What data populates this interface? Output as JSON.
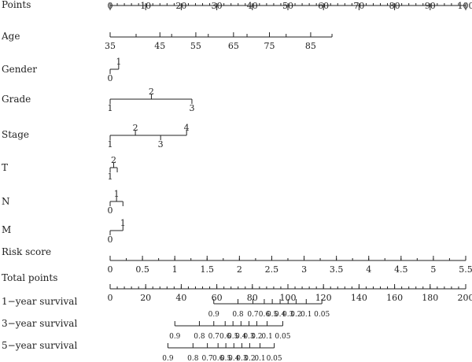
{
  "chart_data": {
    "type": "nomogram",
    "title": "",
    "rows": [
      {
        "label": "Points",
        "kind": "points",
        "ticks": [
          {
            "p": 0,
            "label": "0"
          },
          {
            "p": 10,
            "label": "10"
          },
          {
            "p": 20,
            "label": "20"
          },
          {
            "p": 30,
            "label": "30"
          },
          {
            "p": 40,
            "label": "40"
          },
          {
            "p": 50,
            "label": "50"
          },
          {
            "p": 60,
            "label": "60"
          },
          {
            "p": 70,
            "label": "70"
          },
          {
            "p": 80,
            "label": "80"
          },
          {
            "p": 90,
            "label": "90"
          },
          {
            "p": 100,
            "label": "100"
          }
        ],
        "minor_step": 2
      },
      {
        "label": "Age",
        "kind": "points",
        "ticks": [
          {
            "p": 0,
            "label": "35"
          },
          {
            "p": 7.3,
            "label": ""
          },
          {
            "p": 14,
            "label": "45"
          },
          {
            "p": 17.3,
            "label": ""
          },
          {
            "p": 24.1,
            "label": "55"
          },
          {
            "p": 27.6,
            "label": ""
          },
          {
            "p": 34.7,
            "label": "65"
          },
          {
            "p": 38.5,
            "label": ""
          },
          {
            "p": 44.8,
            "label": "75"
          },
          {
            "p": 49.5,
            "label": ""
          },
          {
            "p": 56.4,
            "label": "85"
          },
          {
            "p": 62.4,
            "label": ""
          }
        ]
      },
      {
        "label": "Gender",
        "kind": "points",
        "ticks": [
          {
            "p": 0,
            "label": "0",
            "side": "below"
          },
          {
            "p": 2.4,
            "label": "1",
            "side": "above"
          }
        ]
      },
      {
        "label": "Grade",
        "kind": "points",
        "ticks": [
          {
            "p": 0,
            "label": "1",
            "side": "below"
          },
          {
            "p": 11.6,
            "label": "2",
            "side": "above"
          },
          {
            "p": 23.0,
            "label": "3",
            "side": "below"
          }
        ]
      },
      {
        "label": "Stage",
        "kind": "points",
        "ticks": [
          {
            "p": 0,
            "label": "1",
            "side": "below"
          },
          {
            "p": 7.1,
            "label": "2",
            "side": "above"
          },
          {
            "p": 14.2,
            "label": "3",
            "side": "below"
          },
          {
            "p": 21.5,
            "label": "4",
            "side": "above"
          }
        ]
      },
      {
        "label": "T",
        "kind": "points",
        "ticks": [
          {
            "p": 0,
            "label": "1",
            "side": "below"
          },
          {
            "p": 1.0,
            "label": "2",
            "side": "above"
          },
          {
            "p": 2.0,
            "label": "",
            "side": "below"
          }
        ]
      },
      {
        "label": "N",
        "kind": "points",
        "ticks": [
          {
            "p": 0,
            "label": "0",
            "side": "below"
          },
          {
            "p": 1.8,
            "label": "1",
            "side": "above"
          },
          {
            "p": 3.6,
            "label": "",
            "side": "below"
          }
        ]
      },
      {
        "label": "M",
        "kind": "points",
        "ticks": [
          {
            "p": 0,
            "label": "0",
            "side": "below"
          },
          {
            "p": 3.6,
            "label": "1",
            "side": "above"
          }
        ]
      },
      {
        "label": "Risk score",
        "kind": "points",
        "ticks": [
          {
            "p": 0,
            "label": "0"
          },
          {
            "p": 9.09,
            "label": "0.5"
          },
          {
            "p": 18.18,
            "label": "1"
          },
          {
            "p": 27.27,
            "label": "1.5"
          },
          {
            "p": 36.36,
            "label": "2"
          },
          {
            "p": 45.45,
            "label": "2.5"
          },
          {
            "p": 54.55,
            "label": "3"
          },
          {
            "p": 63.64,
            "label": "3.5"
          },
          {
            "p": 72.73,
            "label": "4"
          },
          {
            "p": 81.82,
            "label": "4.5"
          },
          {
            "p": 90.91,
            "label": "5"
          },
          {
            "p": 100,
            "label": "5.5"
          }
        ],
        "minor_step": 4.545
      },
      {
        "label": "Total points",
        "kind": "total",
        "ticks": [
          {
            "t": 0,
            "label": "0"
          },
          {
            "t": 20,
            "label": "20"
          },
          {
            "t": 40,
            "label": "40"
          },
          {
            "t": 60,
            "label": "60"
          },
          {
            "t": 80,
            "label": "80"
          },
          {
            "t": 100,
            "label": "100"
          },
          {
            "t": 120,
            "label": "120"
          },
          {
            "t": 140,
            "label": "140"
          },
          {
            "t": 160,
            "label": "160"
          },
          {
            "t": 180,
            "label": "180"
          },
          {
            "t": 200,
            "label": "200"
          }
        ],
        "minor_step": 4
      },
      {
        "label": "1−year survival",
        "kind": "total",
        "small": true,
        "ticks": [
          {
            "t": 58.3,
            "label": "0.9"
          },
          {
            "t": 71.9,
            "label": "0.8"
          },
          {
            "t": 80.3,
            "label": "0.7"
          },
          {
            "t": 86.7,
            "label": "0.6"
          },
          {
            "t": 91.2,
            "label": "0.5"
          },
          {
            "t": 95.6,
            "label": "0.4"
          },
          {
            "t": 100.1,
            "label": "0.3"
          },
          {
            "t": 104.6,
            "label": "0.2"
          },
          {
            "t": 110.3,
            "label": "0.1"
          },
          {
            "t": 119.1,
            "label": "0.05"
          }
        ]
      },
      {
        "label": "3−year survival",
        "kind": "total",
        "small": true,
        "ticks": [
          {
            "t": 36.4,
            "label": "0.9"
          },
          {
            "t": 50.2,
            "label": "0.8"
          },
          {
            "t": 58.3,
            "label": "0.7"
          },
          {
            "t": 64.7,
            "label": "0.6"
          },
          {
            "t": 69.1,
            "label": "0.5"
          },
          {
            "t": 73.6,
            "label": "0.4"
          },
          {
            "t": 78.1,
            "label": "0.3"
          },
          {
            "t": 82.5,
            "label": "0.2"
          },
          {
            "t": 88.3,
            "label": "0.1"
          },
          {
            "t": 97.1,
            "label": "0.05"
          }
        ]
      },
      {
        "label": "5−year survival",
        "kind": "total",
        "small": true,
        "ticks": [
          {
            "t": 32.5,
            "label": "0.9"
          },
          {
            "t": 46.6,
            "label": "0.8"
          },
          {
            "t": 54.7,
            "label": "0.7"
          },
          {
            "t": 60.7,
            "label": "0.6"
          },
          {
            "t": 65.1,
            "label": "0.5"
          },
          {
            "t": 69.6,
            "label": "0.4"
          },
          {
            "t": 74.1,
            "label": "0.3"
          },
          {
            "t": 78.5,
            "label": "0.2"
          },
          {
            "t": 84.3,
            "label": "0.1"
          },
          {
            "t": 92.3,
            "label": "0.05"
          }
        ]
      }
    ]
  }
}
